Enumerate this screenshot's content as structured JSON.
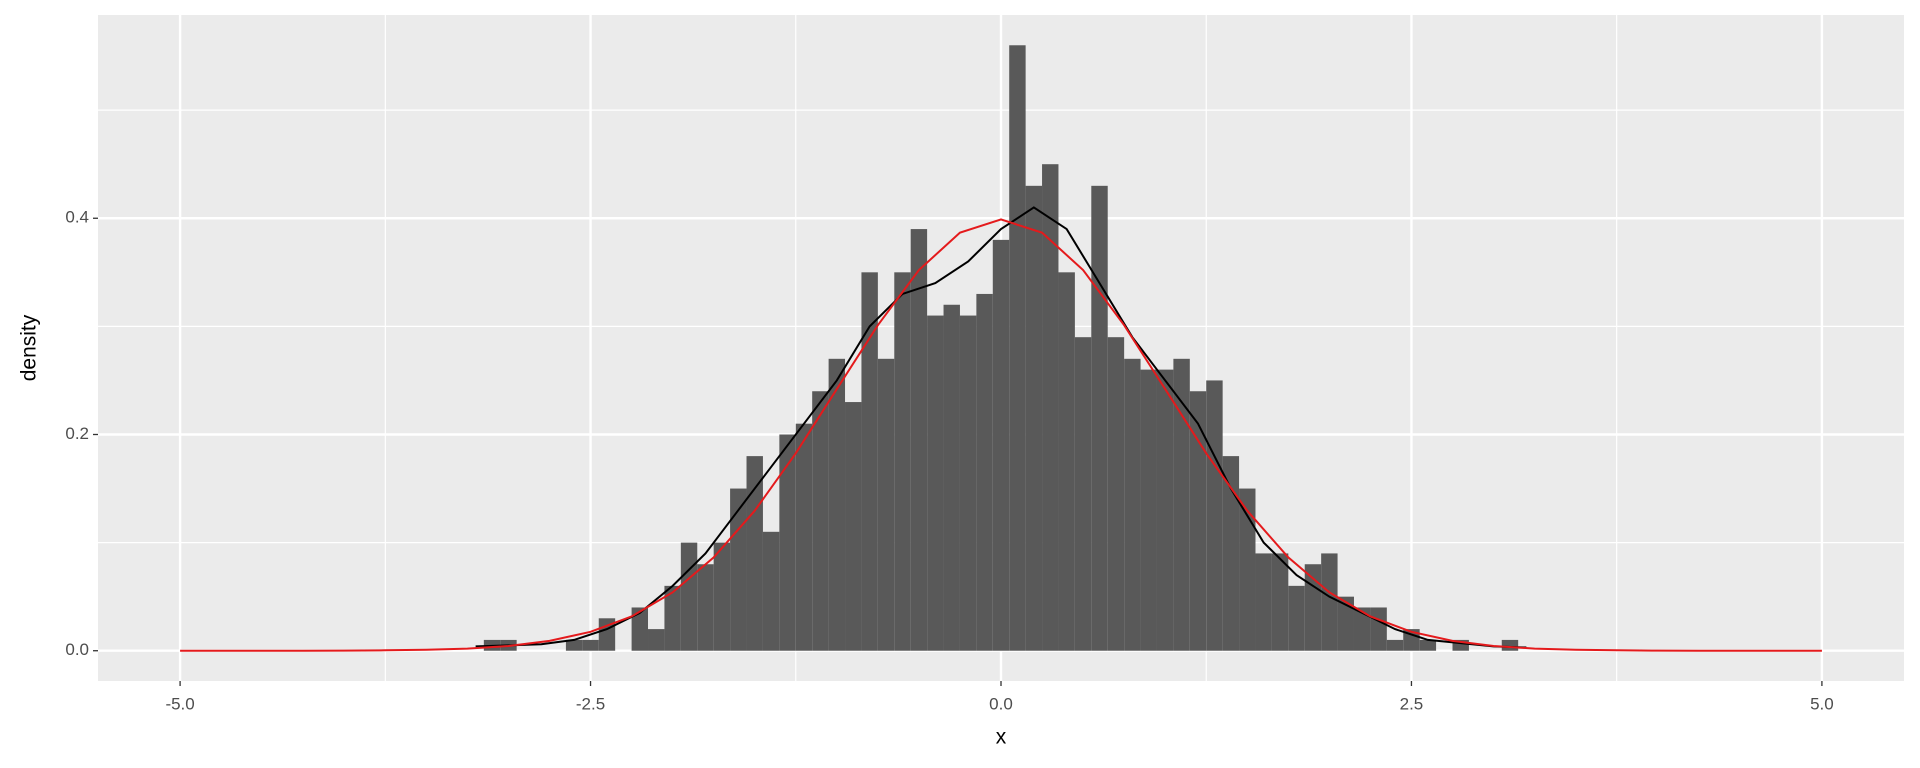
{
  "chart_data": {
    "type": "histogram",
    "x_label": "x",
    "y_label": "density",
    "bins": [
      -3.15,
      -3.05,
      -2.95,
      -2.85,
      -2.75,
      -2.65,
      -2.55,
      -2.45,
      -2.35,
      -2.25,
      -2.15,
      -2.05,
      -1.95,
      -1.85,
      -1.75,
      -1.65,
      -1.55,
      -1.45,
      -1.35,
      -1.25,
      -1.15,
      -1.05,
      -0.95,
      -0.85,
      -0.75,
      -0.65,
      -0.55,
      -0.45,
      -0.35,
      -0.25,
      -0.15,
      -0.05,
      0.05,
      0.15,
      0.25,
      0.35,
      0.45,
      0.55,
      0.65,
      0.75,
      0.85,
      0.95,
      1.05,
      1.15,
      1.25,
      1.35,
      1.45,
      1.55,
      1.65,
      1.75,
      1.85,
      1.95,
      2.05,
      2.15,
      2.25,
      2.35,
      2.45,
      2.55,
      2.65,
      2.75,
      2.85,
      2.95,
      3.05,
      3.15
    ],
    "values": [
      0.01,
      0.01,
      0,
      0,
      0,
      0.01,
      0.01,
      0.03,
      0,
      0.04,
      0.02,
      0.06,
      0.1,
      0.08,
      0.1,
      0.15,
      0.18,
      0.11,
      0.2,
      0.21,
      0.24,
      0.27,
      0.23,
      0.35,
      0.27,
      0.35,
      0.39,
      0.31,
      0.32,
      0.31,
      0.33,
      0.38,
      0.56,
      0.43,
      0.45,
      0.35,
      0.29,
      0.43,
      0.29,
      0.27,
      0.26,
      0.26,
      0.27,
      0.24,
      0.25,
      0.18,
      0.15,
      0.09,
      0.09,
      0.06,
      0.08,
      0.09,
      0.05,
      0.04,
      0.04,
      0.01,
      0.02,
      0.01,
      0,
      0.01,
      0,
      0,
      0.01
    ],
    "color": "#595959",
    "density_curves": [
      {
        "color": "#000000",
        "x": [
          -3.2,
          -3.0,
          -2.8,
          -2.6,
          -2.4,
          -2.2,
          -2.0,
          -1.8,
          -1.6,
          -1.4,
          -1.2,
          -1.0,
          -0.8,
          -0.6,
          -0.4,
          -0.2,
          0.0,
          0.2,
          0.4,
          0.6,
          0.8,
          1.0,
          1.2,
          1.4,
          1.6,
          1.8,
          2.0,
          2.2,
          2.4,
          2.6,
          2.8,
          3.0,
          3.2
        ],
        "y": [
          0.004,
          0.005,
          0.006,
          0.01,
          0.02,
          0.035,
          0.06,
          0.09,
          0.13,
          0.17,
          0.21,
          0.25,
          0.3,
          0.33,
          0.34,
          0.36,
          0.39,
          0.41,
          0.39,
          0.34,
          0.29,
          0.25,
          0.21,
          0.15,
          0.1,
          0.07,
          0.05,
          0.035,
          0.02,
          0.01,
          0.007,
          0.004,
          0.003
        ]
      },
      {
        "color": "#e41a1c",
        "x": [
          -5,
          -4.75,
          -4.5,
          -4.25,
          -4,
          -3.75,
          -3.5,
          -3.25,
          -3,
          -2.75,
          -2.5,
          -2.25,
          -2,
          -1.75,
          -1.5,
          -1.25,
          -1,
          -0.75,
          -0.5,
          -0.25,
          0,
          0.25,
          0.5,
          0.75,
          1,
          1.25,
          1.5,
          1.75,
          2,
          2.25,
          2.5,
          2.75,
          3,
          3.25,
          3.5,
          3.75,
          4,
          4.25,
          4.5,
          4.75,
          5
        ],
        "y": [
          0,
          0,
          0,
          0,
          0.0001,
          0.0004,
          0.0009,
          0.002,
          0.0044,
          0.0091,
          0.0175,
          0.0317,
          0.054,
          0.0863,
          0.1295,
          0.1826,
          0.242,
          0.3011,
          0.3521,
          0.3867,
          0.3989,
          0.3867,
          0.3521,
          0.3011,
          0.242,
          0.1826,
          0.1295,
          0.0863,
          0.054,
          0.0317,
          0.0175,
          0.0091,
          0.0044,
          0.002,
          0.0009,
          0.0004,
          0.0001,
          0,
          0,
          0,
          0
        ]
      }
    ],
    "xlim": [
      -5.5,
      5.5
    ],
    "ylim": [
      -0.028,
      0.588
    ],
    "xticks": [
      {
        "value": -5,
        "label": "-5.0"
      },
      -2.5,
      {
        "value": 0,
        "label": "0.0"
      },
      2.5,
      {
        "value": 5,
        "label": "5.0"
      }
    ],
    "yticks": [
      {
        "value": 0,
        "label": "0.0"
      },
      0.2,
      0.4
    ],
    "x_minor_breaks": [
      -3.75,
      -1.25,
      1.25,
      3.75
    ],
    "y_minor_breaks": [
      0.1,
      0.3,
      0.5
    ],
    "grid": true
  }
}
